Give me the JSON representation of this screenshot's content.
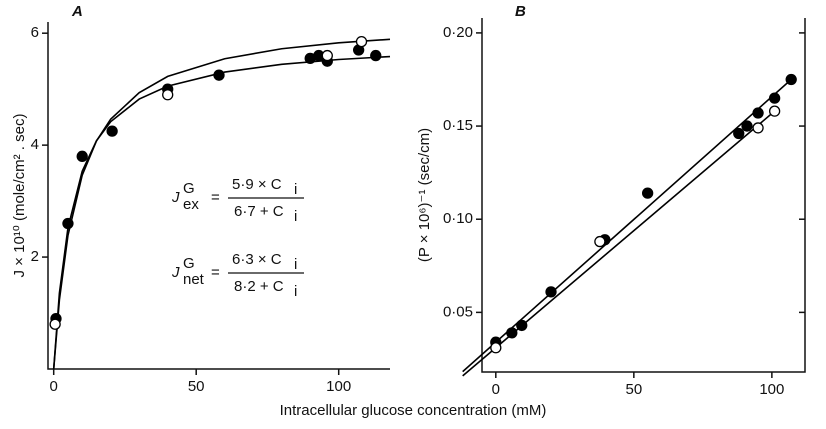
{
  "xlabel": "Intracellular glucose concentration (mM)",
  "chart_data": [
    {
      "type": "scatter",
      "panel": "A",
      "ylabel": "J × 10¹⁰ (mole/cm² . sec)",
      "xlim": [
        -2,
        118
      ],
      "xticks": [
        0,
        50,
        100
      ],
      "ylim": [
        0,
        6.2
      ],
      "yticks": [
        2,
        4,
        6
      ],
      "color": "#000000",
      "series": [
        {
          "marker": "filled",
          "x": [
            0.8,
            5,
            10,
            20.5,
            40,
            58,
            90,
            93,
            96,
            107,
            113
          ],
          "values": [
            0.9,
            2.6,
            3.8,
            4.25,
            5.0,
            5.25,
            5.55,
            5.6,
            5.5,
            5.7,
            5.6
          ]
        },
        {
          "marker": "open",
          "x": [
            0.5,
            40,
            96,
            108
          ],
          "values": [
            0.8,
            4.9,
            5.6,
            5.85
          ]
        }
      ],
      "curves": [
        {
          "x": [
            0,
            2,
            5,
            10,
            15,
            20,
            30,
            40,
            60,
            80,
            100,
            118
          ],
          "values": [
            0,
            1.356,
            2.521,
            3.533,
            4.078,
            4.419,
            4.823,
            5.054,
            5.305,
            5.444,
            5.53,
            5.583
          ]
        },
        {
          "x": [
            0,
            2,
            5,
            10,
            15,
            20,
            30,
            40,
            60,
            80,
            100,
            118
          ],
          "values": [
            0,
            1.235,
            2.386,
            3.462,
            4.074,
            4.465,
            4.937,
            5.228,
            5.543,
            5.722,
            5.828,
            5.891
          ]
        }
      ],
      "equations": [
        {
          "symbol": "J",
          "sup": "G",
          "sub": "ex",
          "equals": "=",
          "numerator": "5·9 × C",
          "numerator_sub": "i",
          "denominator": "6·7 + C",
          "denominator_sub": "i"
        },
        {
          "symbol": "J",
          "sup": "G",
          "sub": "net",
          "equals": "=",
          "numerator": "6·3 × C",
          "numerator_sub": "i",
          "denominator": "8·2 + C",
          "denominator_sub": "i"
        }
      ]
    },
    {
      "type": "scatter",
      "panel": "B",
      "ylabel": "(P × 10⁶)⁻¹ (sec/cm)",
      "xlim": [
        -5,
        112
      ],
      "xticks": [
        0,
        50,
        100
      ],
      "ylim": [
        0.018,
        0.208
      ],
      "yticks": [
        {
          "value": 0.05,
          "label": "0·05"
        },
        {
          "value": 0.1,
          "label": "0·10"
        },
        {
          "value": 0.15,
          "label": "0·15"
        },
        {
          "value": 0.2,
          "label": "0·20"
        }
      ],
      "color": "#000000",
      "series": [
        {
          "marker": "filled",
          "x": [
            0,
            5.8,
            9.4,
            20,
            39.5,
            55,
            88,
            91,
            95,
            101,
            107
          ],
          "values": [
            0.034,
            0.039,
            0.043,
            0.061,
            0.089,
            0.114,
            0.146,
            0.15,
            0.157,
            0.165,
            0.175
          ]
        },
        {
          "marker": "open",
          "x": [
            0,
            37.7,
            95,
            101
          ],
          "values": [
            0.031,
            0.088,
            0.149,
            0.158
          ]
        }
      ],
      "curves": [
        {
          "x": [
            -12,
            107
          ],
          "values": [
            0.0182,
            0.175
          ]
        },
        {
          "x": [
            -12,
            101
          ],
          "values": [
            0.0159,
            0.158
          ]
        }
      ]
    }
  ]
}
